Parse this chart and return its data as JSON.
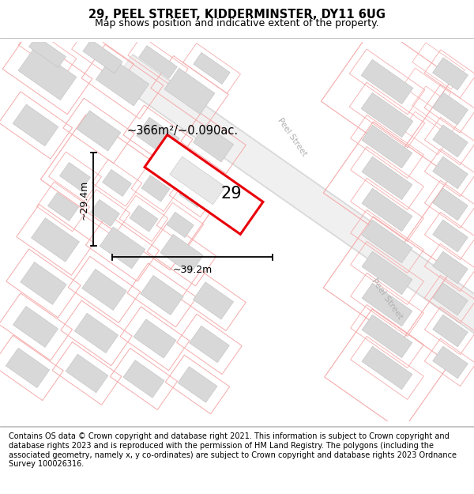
{
  "title_line1": "29, PEEL STREET, KIDDERMINSTER, DY11 6UG",
  "title_line2": "Map shows position and indicative extent of the property.",
  "footer_text": "Contains OS data © Crown copyright and database right 2021. This information is subject to Crown copyright and database rights 2023 and is reproduced with the permission of HM Land Registry. The polygons (including the associated geometry, namely x, y co-ordinates) are subject to Crown copyright and database rights 2023 Ordnance Survey 100026316.",
  "area_label": "~366m²/~0.090ac.",
  "number_label": "29",
  "width_label": "~39.2m",
  "height_label": "~29.4m",
  "street_label": "Peel Street",
  "map_bg": "#ffffff",
  "road_fill": "#e8e8e8",
  "road_edge": "#d0d0d0",
  "building_fill": "#d8d8d8",
  "building_edge": "#c0c0c0",
  "lot_line": "#f5aaaa",
  "plot_red": "#e8000a",
  "title_fontsize": 10,
  "footer_fontsize": 7.5,
  "street_color": "#b0b0b0"
}
